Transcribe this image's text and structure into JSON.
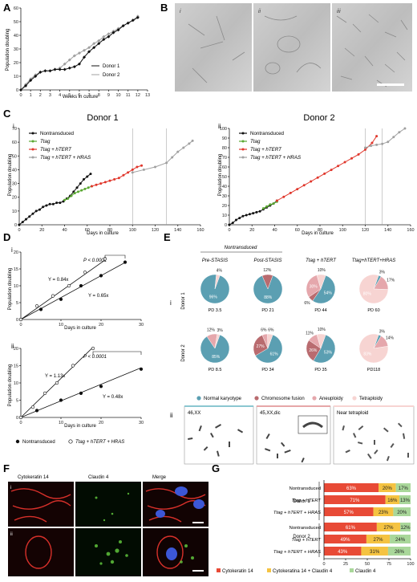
{
  "colors": {
    "black": "#111111",
    "grey": "#a0a0a0",
    "green": "#5aa832",
    "red": "#e0362b",
    "pie_normal": "#5b9fb2",
    "pie_fusion": "#b96b6f",
    "pie_aneu": "#e5a7ac",
    "pie_tetra": "#f7d4d2",
    "bar_ck14": "#e84a36",
    "bar_both": "#f5c342",
    "bar_cl4": "#a9d79a"
  },
  "panel_letters": {
    "a": "A",
    "b": "B",
    "c": "C",
    "d": "D",
    "e": "E",
    "f": "F",
    "g": "G"
  },
  "panelA": {
    "xlabel": "Weeks in culture",
    "ylabel": "Population doubling",
    "legend": [
      "Donor 1",
      "Donor 2"
    ],
    "xticks": [
      "0",
      "1",
      "2",
      "3",
      "4",
      "5",
      "6",
      "7",
      "8",
      "9",
      "10",
      "11",
      "12",
      "13"
    ],
    "yticks": [
      "0",
      "10",
      "20",
      "30",
      "40",
      "50",
      "60"
    ]
  },
  "panelB": {
    "labels": [
      "i",
      "ii",
      "iii"
    ]
  },
  "panelC": {
    "title1": "Donor 1",
    "title2": "Donor 2",
    "roman1": "i",
    "roman2": "ii",
    "xlabel": "Days in culture",
    "ylabel": "Population doubling",
    "legend": [
      "Nontransduced",
      "Ttag",
      "Ttag + hTERT",
      "Ttag + hTERT + HRAS"
    ],
    "xticks": [
      "0",
      "20",
      "40",
      "60",
      "80",
      "100",
      "120",
      "140",
      "160"
    ],
    "yticks": [
      "0",
      "10",
      "20",
      "30",
      "40",
      "50",
      "60",
      "70",
      "80",
      "90",
      "100"
    ]
  },
  "panelD": {
    "roman1": "i",
    "roman2": "ii",
    "xlabel": "Days in culture",
    "ylabel": "Population doubling",
    "p1": "P < 0.0001",
    "p2": "P < 0.0001",
    "eq1a": "Y = 0.84x",
    "eq1b": "Y = 0.65x",
    "eq2a": "Y = 1.13x",
    "eq2b": "Y = 0.48x",
    "xticks": [
      "0",
      "10",
      "20",
      "30"
    ],
    "yticks": [
      "0",
      "5",
      "10",
      "15",
      "20"
    ],
    "legend": [
      "Nontransduced",
      "Ttag + hTERT + HRAS"
    ]
  },
  "panelE": {
    "roman1": "i",
    "roman2": "ii",
    "nontransduced": "Nontransduced",
    "columns": [
      "Pre-STASIS",
      "Post-STASIS",
      "Ttag + hTERT",
      "Ttag+hTERT+HRAS"
    ],
    "rows": [
      "Donor 1",
      "Donor 2"
    ],
    "legend": [
      "Normal karyotype",
      "Chromosome fusion",
      "Aneuploidy",
      "Tetraploidy"
    ],
    "karyotypes": [
      "46,XX",
      "45,XX,dic",
      "Near tetraploid"
    ]
  },
  "panelF": {
    "roman1": "i",
    "roman2": "ii",
    "labels": [
      "Cytokeratin 14",
      "Claudin 4",
      "Merge"
    ]
  },
  "panelG": {
    "legend": [
      "Cytokeratin 14",
      "Cytokeratina 14 + Claudin 4",
      "Claudin 4"
    ],
    "donors": [
      "Donor 1",
      "Donor 2"
    ],
    "xticks": [
      "0",
      "25",
      "50",
      "75",
      "100"
    ]
  },
  "chart_data": [
    {
      "panel": "A",
      "type": "line",
      "xlabel": "Weeks in culture",
      "ylabel": "Population doubling",
      "xlim": [
        0,
        13
      ],
      "ylim": [
        0,
        60
      ],
      "series": [
        {
          "name": "Donor 1",
          "x": [
            0,
            0.5,
            1,
            1.5,
            2,
            2.5,
            3,
            3.5,
            4,
            4.5,
            5,
            5.5,
            6,
            6.5,
            7,
            7.5,
            8,
            8.5,
            9,
            9.5,
            10,
            10.5,
            11,
            11.5,
            12
          ],
          "y": [
            0,
            3,
            7,
            10,
            13,
            14,
            14,
            15,
            15,
            15,
            16,
            17,
            19,
            24,
            28,
            31,
            34,
            37,
            39,
            42,
            44,
            47,
            49,
            51,
            53
          ]
        },
        {
          "name": "Donor 2",
          "x": [
            0,
            0.5,
            1,
            1.5,
            2,
            2.5,
            3,
            3.5,
            4,
            4.5,
            5,
            5.5,
            6,
            6.5,
            7,
            7.5,
            8,
            8.5,
            9,
            9.5,
            10,
            10.5,
            11,
            11.5,
            12
          ],
          "y": [
            0,
            4,
            8,
            11,
            13,
            14,
            14,
            15,
            16,
            19,
            22,
            25,
            27,
            29,
            31,
            34,
            36,
            39,
            41,
            43,
            45,
            47,
            49,
            51,
            54
          ]
        }
      ]
    },
    {
      "panel": "C-i",
      "type": "line",
      "title": "Donor 1",
      "xlabel": "Days in culture",
      "ylabel": "Population doubling",
      "xlim": [
        0,
        160
      ],
      "ylim": [
        0,
        70
      ],
      "series": [
        {
          "name": "Nontransduced",
          "x": [
            0,
            3,
            6,
            9,
            12,
            15,
            18,
            21,
            24,
            27,
            30,
            33,
            36,
            39,
            42,
            45,
            48,
            51,
            54,
            57,
            60,
            63
          ],
          "y": [
            0,
            2,
            4,
            6,
            8,
            10,
            11,
            13,
            14,
            15,
            15,
            16,
            16,
            17,
            19,
            21,
            24,
            27,
            30,
            33,
            35,
            37
          ]
        },
        {
          "name": "Ttag",
          "x": [
            40,
            43,
            46,
            49,
            52,
            55,
            58,
            61,
            64
          ],
          "y": [
            18,
            19,
            21,
            23,
            24,
            25,
            26,
            27,
            28
          ]
        },
        {
          "name": "Ttag + hTERT",
          "x": [
            64,
            68,
            72,
            76,
            80,
            84,
            88,
            92,
            96,
            100,
            104,
            108
          ],
          "y": [
            28,
            29,
            30,
            31,
            32,
            33,
            34,
            36,
            38,
            40,
            42,
            43
          ]
        },
        {
          "name": "Ttag + hTERT + HRAS",
          "x": [
            100,
            110,
            120,
            130,
            135,
            140,
            145,
            150,
            153
          ],
          "y": [
            38,
            40,
            42,
            45,
            49,
            53,
            56,
            59,
            61
          ]
        }
      ],
      "vertical_lines_x": [
        100,
        130
      ]
    },
    {
      "panel": "C-ii",
      "type": "line",
      "title": "Donor 2",
      "xlabel": "Days in culture",
      "ylabel": "Population doubling",
      "xlim": [
        0,
        160
      ],
      "ylim": [
        0,
        100
      ],
      "series": [
        {
          "name": "Nontransduced",
          "x": [
            0,
            3,
            6,
            9,
            12,
            15,
            18,
            21,
            24,
            27,
            30,
            33,
            36,
            39,
            42
          ],
          "y": [
            0,
            2,
            5,
            7,
            9,
            10,
            11,
            12,
            13,
            14,
            16,
            18,
            20,
            22,
            25
          ]
        },
        {
          "name": "Ttag",
          "x": [
            30,
            33,
            36,
            39,
            42
          ],
          "y": [
            17,
            19,
            21,
            22,
            24
          ]
        },
        {
          "name": "Ttag + hTERT",
          "x": [
            42,
            48,
            54,
            60,
            66,
            72,
            78,
            84,
            90,
            96,
            102,
            108,
            114,
            120,
            126,
            130
          ],
          "y": [
            25,
            29,
            33,
            37,
            41,
            45,
            49,
            53,
            57,
            61,
            65,
            69,
            73,
            78,
            85,
            92
          ]
        },
        {
          "name": "Ttag + hTERT + HRAS",
          "x": [
            120,
            125,
            130,
            135,
            140,
            145,
            150,
            155
          ],
          "y": [
            80,
            82,
            83,
            84,
            86,
            91,
            96,
            100
          ]
        }
      ],
      "vertical_lines_x": [
        120,
        135
      ]
    },
    {
      "panel": "D-i",
      "type": "scatter",
      "xlabel": "Days in culture",
      "ylabel": "Population doubling",
      "xlim": [
        0,
        30
      ],
      "ylim": [
        0,
        20
      ],
      "series": [
        {
          "name": "Nontransduced",
          "x": [
            0,
            5,
            10,
            15,
            20,
            26
          ],
          "y": [
            0,
            3,
            6,
            10,
            13,
            17
          ],
          "fit": "Y = 0.65x"
        },
        {
          "name": "Ttag + hTERT + HRAS",
          "x": [
            0,
            4,
            8,
            12,
            16,
            21
          ],
          "y": [
            0,
            4,
            7,
            10,
            14,
            18
          ],
          "fit": "Y = 0.84x"
        }
      ],
      "annotation": "P < 0.0001"
    },
    {
      "panel": "D-ii",
      "type": "scatter",
      "xlabel": "Days in culture",
      "ylabel": "Population doubling",
      "xlim": [
        0,
        30
      ],
      "ylim": [
        0,
        20
      ],
      "series": [
        {
          "name": "Nontransduced",
          "x": [
            0,
            4,
            10,
            15,
            20,
            30
          ],
          "y": [
            0,
            2,
            5,
            7,
            9,
            14
          ],
          "fit": "Y = 0.48x"
        },
        {
          "name": "Ttag + hTERT + HRAS",
          "x": [
            0,
            3,
            6,
            9,
            13,
            18
          ],
          "y": [
            0,
            3,
            7,
            10,
            15,
            20
          ],
          "fit": "Y = 1.13x"
        }
      ],
      "annotation": "P < 0.0001"
    },
    {
      "panel": "E-i",
      "type": "pie",
      "categories": [
        "Normal karyotype",
        "Chromosome fusion",
        "Aneuploidy",
        "Tetraploidy"
      ],
      "pies": [
        {
          "row": "Donor 1",
          "column": "Pre-STASIS",
          "pd": "PD 3.5",
          "values": [
            96,
            0,
            0,
            4
          ],
          "labels": [
            "96%",
            "",
            "",
            "4%"
          ]
        },
        {
          "row": "Donor 1",
          "column": "Post-STASIS",
          "pd": "PD 21",
          "values": [
            88,
            12,
            0,
            0
          ],
          "labels": [
            "88%",
            "12%",
            "",
            ""
          ]
        },
        {
          "row": "Donor 1",
          "column": "Ttag + hTERT",
          "pd": "PD 44",
          "values": [
            54,
            6,
            30,
            10
          ],
          "labels": [
            "54%",
            "6%",
            "30%",
            "10%"
          ]
        },
        {
          "row": "Donor 1",
          "column": "Ttag+hTERT+HRAS",
          "pd": "PD 60",
          "values": [
            3,
            0,
            17,
            80
          ],
          "labels": [
            "3%",
            "",
            "17%",
            "80%"
          ]
        },
        {
          "row": "Donor 2",
          "column": "Pre-STASIS",
          "pd": "PD 8.5",
          "values": [
            85,
            0,
            12,
            3
          ],
          "labels": [
            "85%",
            "",
            "12%",
            "3%"
          ]
        },
        {
          "row": "Donor 2",
          "column": "Post-STASIS",
          "pd": "PD 34",
          "values": [
            61,
            27,
            6,
            6
          ],
          "labels": [
            "61%",
            "27%",
            "6%",
            "6%"
          ]
        },
        {
          "row": "Donor 2",
          "column": "Ttag + hTERT",
          "pd": "PD 35",
          "values": [
            53,
            26,
            11,
            10
          ],
          "labels": [
            "53%",
            "26%",
            "11%",
            "10%"
          ]
        },
        {
          "row": "Donor 2",
          "column": "Ttag+hTERT+HRAS",
          "pd": "PD118",
          "values": [
            3,
            0,
            14,
            83
          ],
          "labels": [
            "3%",
            "",
            "14%",
            "83%"
          ]
        }
      ]
    },
    {
      "panel": "G",
      "type": "bar",
      "orientation": "horizontal",
      "stacked": true,
      "categories": [
        "Nontransduced",
        "Ttag + hTERT",
        "Ttag + hTERT + HRAS",
        "Nontransduced",
        "Ttag + hTERT",
        "Ttag + hTERT + HRAS"
      ],
      "groups": [
        "Donor 1",
        "Donor 1",
        "Donor 1",
        "Donor 2",
        "Donor 2",
        "Donor 2"
      ],
      "series": [
        {
          "name": "Cytokeratin 14",
          "values": [
            63,
            71,
            57,
            61,
            49,
            43
          ]
        },
        {
          "name": "Cytokeratina 14 + Claudin 4",
          "values": [
            20,
            16,
            23,
            27,
            27,
            31
          ]
        },
        {
          "name": "Claudin 4",
          "values": [
            17,
            13,
            20,
            12,
            24,
            26
          ]
        }
      ],
      "xlim": [
        0,
        100
      ]
    }
  ]
}
